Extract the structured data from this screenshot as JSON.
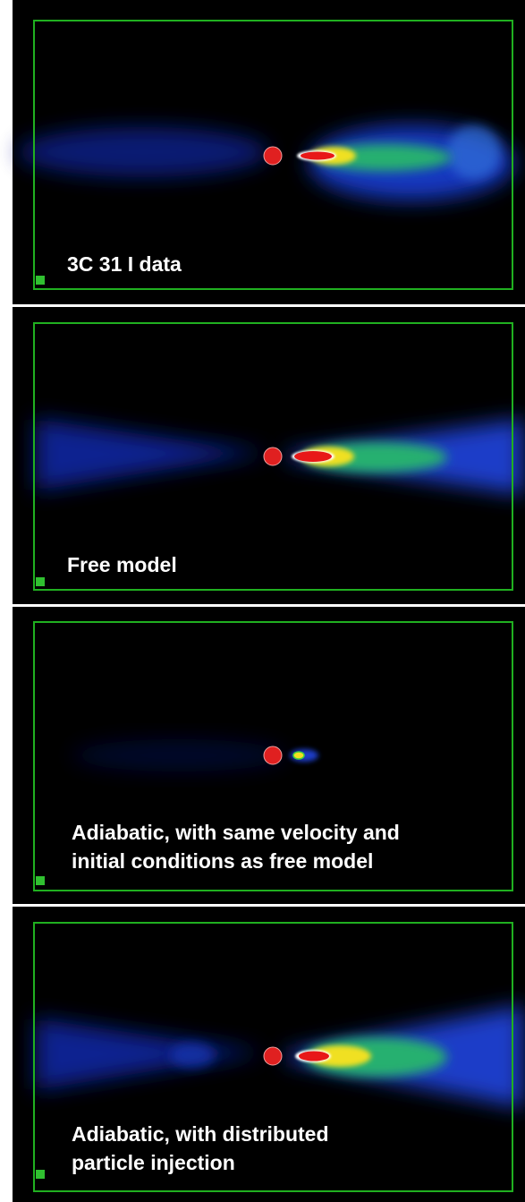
{
  "panels": [
    {
      "label": [
        "3C 31 I data"
      ]
    },
    {
      "label": [
        "Free model"
      ]
    },
    {
      "label": [
        "Adiabatic, with same velocity and",
        "initial conditions as free model"
      ]
    },
    {
      "label": [
        "Adiabatic, with distributed",
        "particle injection"
      ]
    }
  ]
}
